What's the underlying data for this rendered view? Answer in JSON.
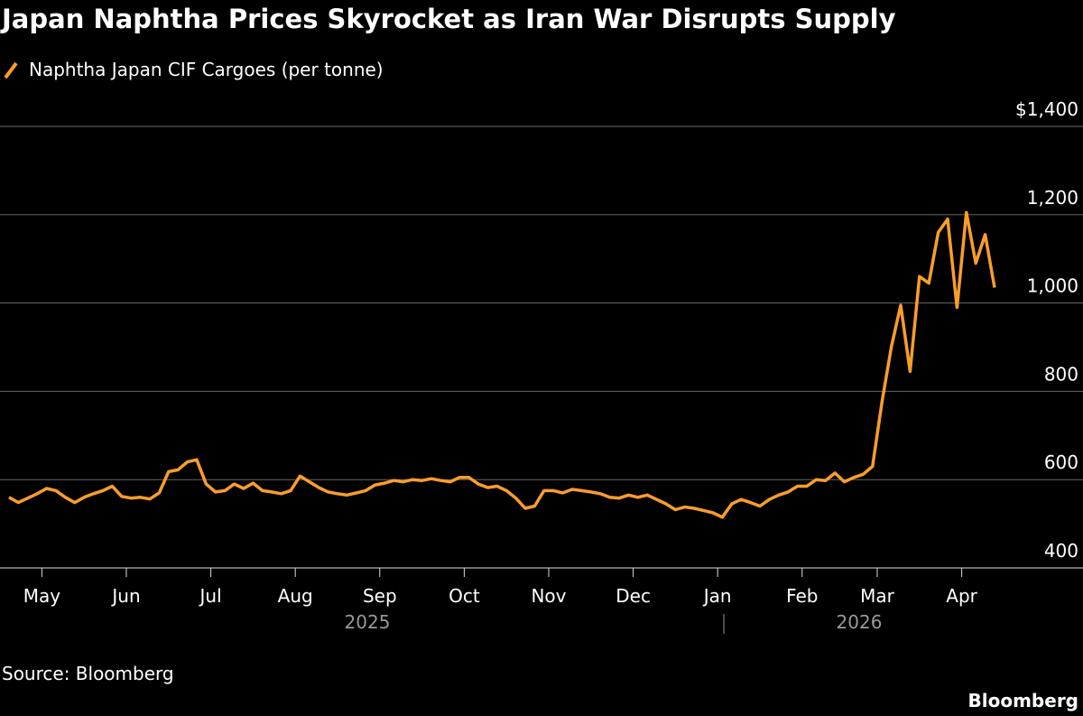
{
  "chart_data": {
    "type": "line",
    "title": "Japan Naphtha Prices Skyrocket as Iran War Disrupts Supply",
    "source": "Source: Bloomberg",
    "brand": "Bloomberg",
    "year_labels": [
      "2025",
      "2026"
    ],
    "x": [
      "2025-04",
      "2025-04",
      "2025-04",
      "2025-04",
      "2025-05",
      "2025-05",
      "2025-05",
      "2025-05",
      "2025-05",
      "2025-05",
      "2025-05",
      "2025-05",
      "2025-05",
      "2025-06",
      "2025-06",
      "2025-06",
      "2025-06",
      "2025-06",
      "2025-06",
      "2025-06",
      "2025-06",
      "2025-06",
      "2025-07",
      "2025-07",
      "2025-07",
      "2025-07",
      "2025-07",
      "2025-07",
      "2025-07",
      "2025-07",
      "2025-07",
      "2025-08",
      "2025-08",
      "2025-08",
      "2025-08",
      "2025-08",
      "2025-08",
      "2025-08",
      "2025-08",
      "2025-08",
      "2025-09",
      "2025-09",
      "2025-09",
      "2025-09",
      "2025-09",
      "2025-09",
      "2025-09",
      "2025-09",
      "2025-09",
      "2025-10",
      "2025-10",
      "2025-10",
      "2025-10",
      "2025-10",
      "2025-10",
      "2025-10",
      "2025-10",
      "2025-10",
      "2025-11",
      "2025-11",
      "2025-11",
      "2025-11",
      "2025-11",
      "2025-11",
      "2025-11",
      "2025-11",
      "2025-11",
      "2025-12",
      "2025-12",
      "2025-12",
      "2025-12",
      "2025-12",
      "2025-12",
      "2025-12",
      "2025-12",
      "2025-12",
      "2026-01",
      "2026-01",
      "2026-01",
      "2026-01",
      "2026-01",
      "2026-01",
      "2026-01",
      "2026-01",
      "2026-01",
      "2026-02",
      "2026-02",
      "2026-02",
      "2026-02",
      "2026-02",
      "2026-02",
      "2026-02",
      "2026-02",
      "2026-03",
      "2026-03",
      "2026-03",
      "2026-03",
      "2026-03",
      "2026-03",
      "2026-03",
      "2026-03",
      "2026-03",
      "2026-04",
      "2026-04",
      "2026-04",
      "2026-04"
    ],
    "series": [
      {
        "name": "Naphtha Japan CIF Cargoes (per tonne)",
        "color": "#fb9d2b",
        "values": [
          560,
          548,
          558,
          568,
          580,
          575,
          560,
          548,
          560,
          568,
          575,
          585,
          562,
          558,
          560,
          556,
          570,
          618,
          622,
          640,
          645,
          590,
          572,
          575,
          590,
          580,
          592,
          575,
          572,
          568,
          575,
          608,
          595,
          582,
          572,
          568,
          565,
          570,
          575,
          588,
          592,
          598,
          595,
          600,
          598,
          602,
          598,
          595,
          605,
          605,
          590,
          582,
          585,
          575,
          558,
          535,
          540,
          575,
          575,
          570,
          578,
          575,
          572,
          568,
          560,
          558,
          565,
          560,
          565,
          555,
          545,
          532,
          538,
          535,
          530,
          525,
          515,
          545,
          555,
          548,
          540,
          555,
          565,
          572,
          585,
          585,
          600,
          598,
          615,
          595,
          605,
          612,
          630,
          775,
          900,
          995,
          845,
          1060,
          1045,
          1160,
          1190,
          990,
          1205,
          1090,
          1155,
          1035
        ]
      }
    ],
    "xticks": [
      {
        "value": "2025-05",
        "label": "May"
      },
      {
        "value": "2025-06",
        "label": "Jun"
      },
      {
        "value": "2025-07",
        "label": "Jul"
      },
      {
        "value": "2025-08",
        "label": "Aug"
      },
      {
        "value": "2025-09",
        "label": "Sep"
      },
      {
        "value": "2025-10",
        "label": "Oct"
      },
      {
        "value": "2025-11",
        "label": "Nov"
      },
      {
        "value": "2025-12",
        "label": "Dec"
      },
      {
        "value": "2026-01",
        "label": "Jan"
      },
      {
        "value": "2026-02",
        "label": "Feb"
      },
      {
        "value": "2026-03",
        "label": "Mar"
      },
      {
        "value": "2026-04",
        "label": "Apr"
      }
    ],
    "ylim": [
      400,
      1400
    ],
    "yticks": [
      400,
      600,
      800,
      {
        "value": 1000,
        "label": "1,000"
      },
      {
        "value": 1200,
        "label": "1,200"
      },
      {
        "value": 1400,
        "label": "$1,400"
      }
    ],
    "grid": true
  }
}
